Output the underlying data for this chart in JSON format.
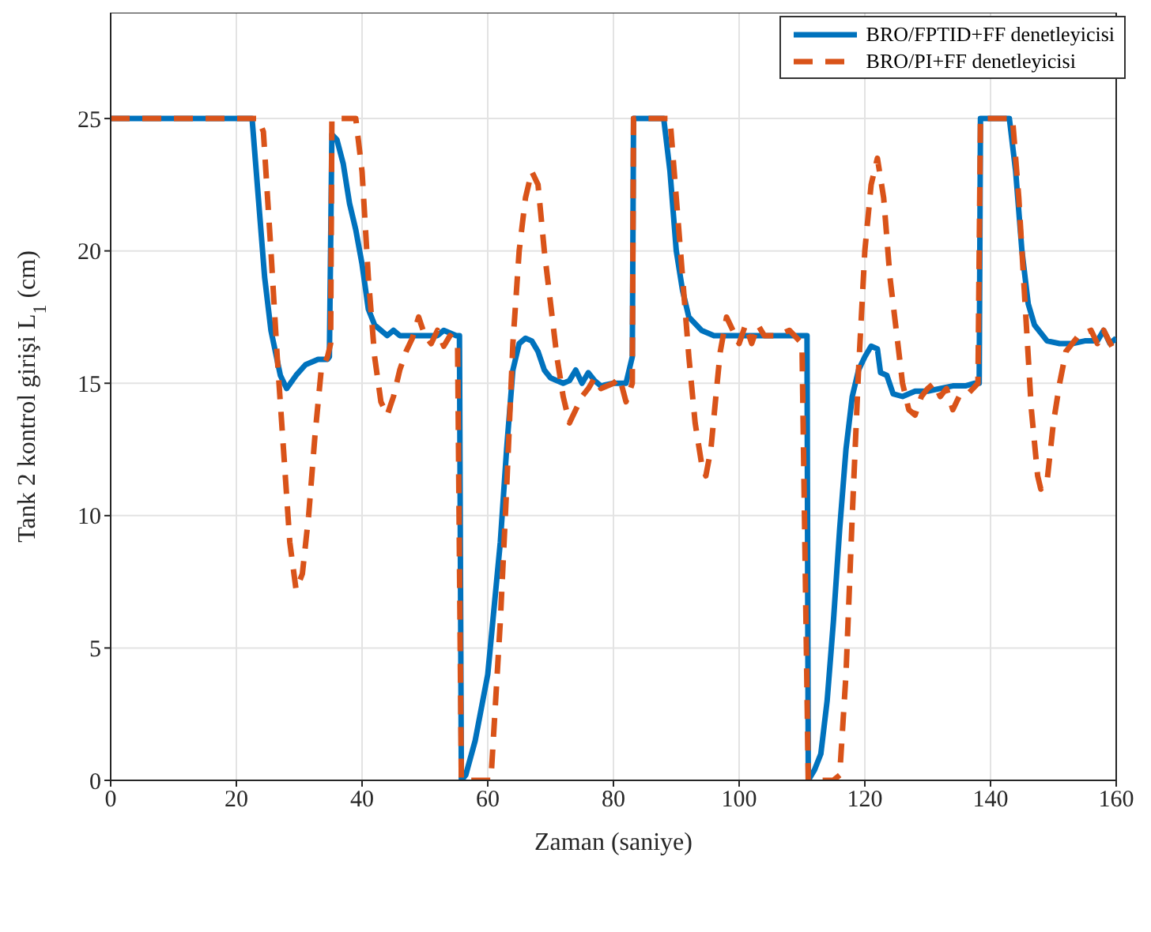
{
  "chart_data": {
    "type": "line",
    "xlabel": "Zaman (saniye)",
    "ylabel": "Tank 2 kontrol girişi L$_{1}$ (cm)",
    "xlim": [
      0,
      160
    ],
    "xticks": [
      0,
      20,
      40,
      60,
      80,
      100,
      120,
      140,
      160
    ],
    "ylim": [
      0,
      29
    ],
    "yticks": [
      0,
      5,
      10,
      15,
      20,
      25
    ],
    "grid": true,
    "legend": "top right",
    "marker": "none",
    "series": [
      {
        "name": "BRO/FPTID+FF denetleyicisi",
        "color": "#0072bd",
        "line_style": "solid",
        "x": [
          0,
          22.5,
          23.5,
          24.5,
          25.5,
          27,
          28,
          29.5,
          31,
          33,
          34.5,
          34.8,
          35.2,
          36,
          37,
          38,
          39,
          40,
          41,
          42,
          44,
          45,
          46,
          48,
          50,
          52,
          53,
          55,
          55.5,
          55.8,
          56.5,
          58,
          60,
          62,
          63,
          64,
          65,
          66,
          67,
          68,
          69,
          70,
          72,
          73,
          74,
          75,
          76,
          77,
          78,
          80,
          82,
          82.5,
          83,
          83.2,
          88,
          89,
          90,
          91,
          92,
          94,
          96,
          98,
          100,
          104,
          108,
          110,
          110.8,
          111,
          112,
          113,
          114,
          115,
          116,
          117,
          118,
          119,
          120,
          121,
          122,
          122.5,
          123.5,
          124.5,
          126,
          128,
          130,
          132,
          134,
          136,
          137.5,
          138.2,
          138.4,
          143,
          144,
          145,
          146,
          147,
          149,
          151,
          153,
          155,
          157,
          158,
          159,
          160
        ],
        "values": [
          25,
          25,
          22,
          19,
          17,
          15.3,
          14.8,
          15.3,
          15.7,
          15.9,
          15.9,
          16,
          24.4,
          24.2,
          23.3,
          21.8,
          20.8,
          19.5,
          17.8,
          17.2,
          16.8,
          17,
          16.8,
          16.8,
          16.8,
          16.8,
          17,
          16.8,
          16.8,
          0,
          0.2,
          1.5,
          4,
          9,
          12.5,
          15.5,
          16.5,
          16.7,
          16.6,
          16.2,
          15.5,
          15.2,
          15,
          15.1,
          15.5,
          15,
          15.4,
          15.1,
          14.9,
          15,
          15,
          15.5,
          16,
          25,
          25,
          23,
          20,
          18.5,
          17.5,
          17,
          16.8,
          16.8,
          16.8,
          16.8,
          16.8,
          16.8,
          16.8,
          0,
          0.4,
          1,
          3,
          6,
          9.5,
          12.5,
          14.5,
          15.5,
          16,
          16.4,
          16.3,
          15.4,
          15.3,
          14.6,
          14.5,
          14.7,
          14.7,
          14.8,
          14.9,
          14.9,
          15,
          15,
          25,
          25,
          23,
          20,
          18,
          17.2,
          16.6,
          16.5,
          16.5,
          16.6,
          16.6,
          17,
          16.5,
          16.7
        ]
      },
      {
        "name": "BRO/PI+FF denetleyicisi",
        "color": "#d95319",
        "line_style": "dashed",
        "x": [
          0,
          23.5,
          24.3,
          25.5,
          26.5,
          27.5,
          28.5,
          29.5,
          30.5,
          31.5,
          32.5,
          33.5,
          34.5,
          35,
          35.2,
          39,
          40,
          41,
          42,
          43,
          44,
          45,
          46,
          47,
          48,
          49,
          50,
          51,
          52,
          53,
          54,
          55.2,
          55.8,
          60.5,
          61,
          62,
          63,
          64,
          65,
          66,
          67,
          68,
          69,
          70,
          71,
          72,
          73,
          74,
          75,
          76,
          77,
          78,
          80,
          81,
          82,
          83,
          83.2,
          89,
          90,
          91,
          92,
          93,
          94,
          94.7,
          95.5,
          96.5,
          97,
          98,
          99,
          100,
          101,
          102,
          103,
          104,
          106,
          108,
          110,
          111,
          115,
          116,
          117,
          118,
          119,
          120,
          121,
          122,
          123,
          124,
          125,
          126,
          127,
          128,
          129,
          130,
          131,
          132,
          133,
          134,
          135,
          136,
          138,
          138.4,
          143.5,
          144.5,
          145.5,
          146.5,
          147.5,
          148,
          149,
          150,
          151,
          152,
          154,
          156,
          157,
          158,
          159.5
        ],
        "values": [
          25,
          25,
          24.5,
          20,
          16,
          12.5,
          9,
          7.2,
          7.8,
          10,
          13,
          15.5,
          16,
          16.5,
          25,
          25,
          23,
          19,
          16,
          14.3,
          13.8,
          14.5,
          15.5,
          16.2,
          16.7,
          17.5,
          16.8,
          16.5,
          17,
          16.4,
          16.8,
          16.5,
          0,
          0,
          2,
          6,
          11,
          16.5,
          20,
          22,
          23,
          22.5,
          20,
          18,
          16,
          14.5,
          13.5,
          14,
          14.5,
          14.8,
          15.2,
          14.8,
          15,
          15.2,
          14.3,
          15,
          25,
          25,
          22,
          19,
          16,
          13.5,
          12,
          11.5,
          12.5,
          15,
          16.2,
          17.5,
          17,
          16.5,
          17.2,
          16.5,
          17.2,
          16.8,
          16.8,
          17,
          16.5,
          0,
          0,
          0.2,
          4,
          10,
          15.5,
          20,
          22.5,
          23.5,
          22,
          19,
          17,
          15,
          14,
          13.8,
          14.5,
          14.8,
          15,
          14.5,
          14.8,
          14,
          14.5,
          14.5,
          15,
          25,
          25,
          22,
          18,
          14,
          11.5,
          11,
          11.3,
          13.5,
          15,
          16.2,
          16.8,
          17,
          16.5,
          17,
          16.3
        ]
      }
    ]
  }
}
